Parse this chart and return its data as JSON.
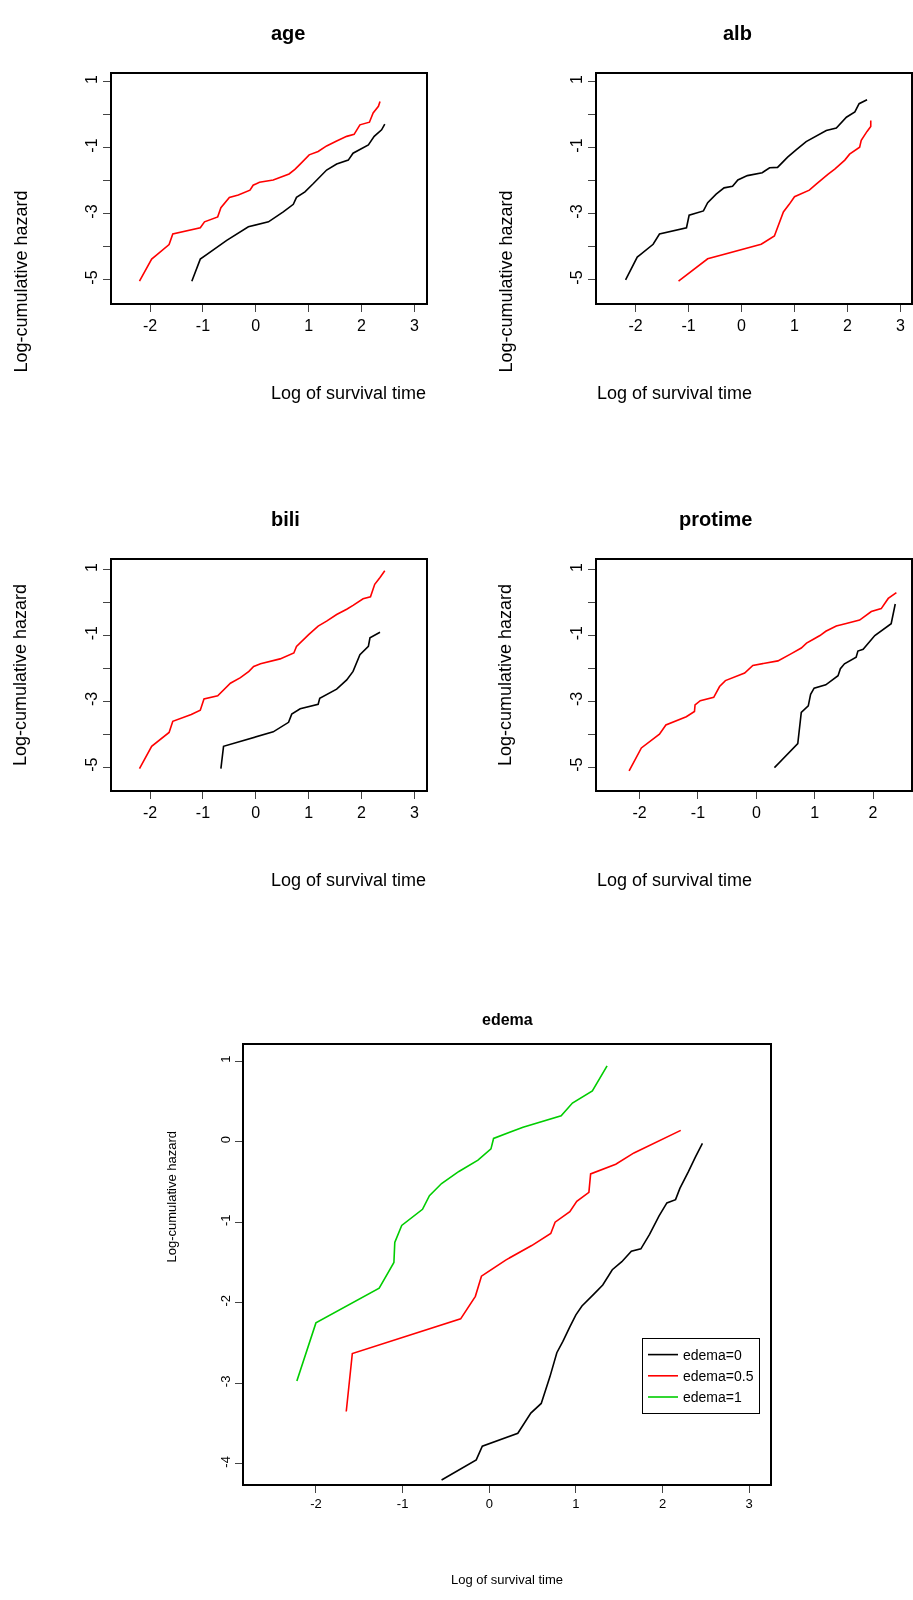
{
  "chart_data": [
    {
      "type": "line",
      "title": "age",
      "xlabel": "Log of survival time",
      "ylabel": "Log-cumulative hazard",
      "xlim": [
        -2.72,
        3.22
      ],
      "ylim": [
        -5.7,
        1.24
      ],
      "xticks": [
        -2,
        -1,
        0,
        1,
        2,
        3
      ],
      "yticks": [
        1,
        {
          "value": 0,
          "label": null
        },
        -1,
        {
          "value": -2,
          "label": null
        },
        -3,
        {
          "value": -4,
          "label": null
        },
        -5
      ],
      "series": [
        {
          "color": "#ff0000",
          "x": [
            -2.2,
            -1.97,
            -1.64,
            -1.57,
            -1.05,
            -0.97,
            -0.72,
            -0.66,
            -0.5,
            -0.33,
            -0.11,
            -0.05,
            0.07,
            0.33,
            0.63,
            0.74,
            0.84,
            1.01,
            1.18,
            1.34,
            1.53,
            1.72,
            1.86,
            1.97,
            2.15,
            2.22,
            2.32,
            2.35
          ],
          "values": [
            -5.04,
            -4.37,
            -3.93,
            -3.61,
            -3.42,
            -3.24,
            -3.09,
            -2.81,
            -2.5,
            -2.43,
            -2.28,
            -2.13,
            -2.04,
            -1.97,
            -1.79,
            -1.65,
            -1.49,
            -1.21,
            -1.11,
            -0.94,
            -0.79,
            -0.65,
            -0.59,
            -0.3,
            -0.22,
            0.06,
            0.26,
            0.41
          ]
        },
        {
          "color": "#000000",
          "x": [
            -1.21,
            -1.05,
            -0.55,
            -0.14,
            0.24,
            0.52,
            0.71,
            0.77,
            0.93,
            1.09,
            1.34,
            1.53,
            1.75,
            1.84,
            2.13,
            2.24,
            2.38,
            2.44
          ],
          "values": [
            -5.04,
            -4.37,
            -3.8,
            -3.39,
            -3.24,
            -2.94,
            -2.71,
            -2.5,
            -2.33,
            -2.08,
            -1.67,
            -1.49,
            -1.37,
            -1.16,
            -0.91,
            -0.65,
            -0.45,
            -0.28
          ]
        }
      ]
    },
    {
      "type": "line",
      "title": "alb",
      "xlabel": "Log of survival time",
      "ylabel": "Log-cumulative hazard",
      "xlim": [
        -2.73,
        3.2
      ],
      "ylim": [
        -5.7,
        1.24
      ],
      "xticks": [
        -2,
        -1,
        0,
        1,
        2,
        3
      ],
      "yticks": [
        1,
        {
          "value": 0,
          "label": null
        },
        -1,
        {
          "value": -2,
          "label": null
        },
        -3,
        {
          "value": -4,
          "label": null
        },
        -5
      ],
      "series": [
        {
          "color": "#000000",
          "x": [
            -2.19,
            -1.97,
            -1.67,
            -1.55,
            -1.04,
            -0.99,
            -0.72,
            -0.64,
            -0.48,
            -0.33,
            -0.17,
            -0.07,
            0.11,
            0.39,
            0.53,
            0.68,
            0.87,
            1.03,
            1.22,
            1.6,
            1.79,
            1.98,
            2.14,
            2.22,
            2.37
          ],
          "values": [
            -5.0,
            -4.31,
            -3.92,
            -3.61,
            -3.42,
            -3.04,
            -2.91,
            -2.66,
            -2.4,
            -2.21,
            -2.16,
            -1.97,
            -1.84,
            -1.75,
            -1.6,
            -1.59,
            -1.28,
            -1.06,
            -0.81,
            -0.47,
            -0.4,
            -0.07,
            0.09,
            0.34,
            0.46
          ]
        },
        {
          "color": "#ff0000",
          "x": [
            -1.19,
            -0.64,
            0.37,
            0.62,
            0.79,
            0.9,
            1.0,
            1.28,
            1.41,
            1.63,
            1.76,
            1.95,
            2.04,
            2.23,
            2.26,
            2.37,
            2.44,
            2.44
          ],
          "values": [
            -5.04,
            -4.36,
            -3.92,
            -3.67,
            -2.94,
            -2.71,
            -2.48,
            -2.28,
            -2.1,
            -1.8,
            -1.64,
            -1.37,
            -1.19,
            -0.98,
            -0.77,
            -0.5,
            -0.35,
            -0.17
          ]
        }
      ]
    },
    {
      "type": "line",
      "title": "bili",
      "xlabel": "Log of survival time",
      "ylabel": "Log-cumulative hazard",
      "xlim": [
        -2.72,
        3.22
      ],
      "ylim": [
        -5.7,
        1.3
      ],
      "xticks": [
        -2,
        -1,
        0,
        1,
        2,
        3
      ],
      "yticks": [
        1,
        {
          "value": 0,
          "label": null
        },
        -1,
        {
          "value": -2,
          "label": null
        },
        -3,
        {
          "value": -4,
          "label": null
        },
        -5
      ],
      "series": [
        {
          "color": "#ff0000",
          "x": [
            -2.2,
            -1.97,
            -1.64,
            -1.57,
            -1.22,
            -1.05,
            -0.98,
            -0.72,
            -0.48,
            -0.29,
            -0.13,
            -0.04,
            0.09,
            0.46,
            0.72,
            0.77,
            1.0,
            1.18,
            1.34,
            1.53,
            1.72,
            1.84,
            2.03,
            2.17,
            2.25,
            2.35,
            2.44
          ],
          "values": [
            -5.05,
            -4.37,
            -3.95,
            -3.61,
            -3.4,
            -3.27,
            -2.93,
            -2.83,
            -2.45,
            -2.28,
            -2.09,
            -1.94,
            -1.86,
            -1.71,
            -1.53,
            -1.33,
            -0.97,
            -0.71,
            -0.56,
            -0.36,
            -0.2,
            -0.08,
            0.12,
            0.18,
            0.56,
            0.77,
            0.97
          ]
        },
        {
          "color": "#000000",
          "x": [
            -0.66,
            -0.61,
            0.33,
            0.62,
            0.68,
            0.84,
            1.18,
            1.21,
            1.53,
            1.72,
            1.84,
            1.97,
            2.13,
            2.16,
            2.35
          ],
          "values": [
            -5.05,
            -4.37,
            -3.93,
            -3.64,
            -3.39,
            -3.23,
            -3.09,
            -2.91,
            -2.63,
            -2.35,
            -2.09,
            -1.58,
            -1.33,
            -1.07,
            -0.9
          ]
        }
      ]
    },
    {
      "type": "line",
      "title": "protime",
      "xlabel": "Log of survival time",
      "ylabel": "Log-cumulative hazard",
      "xlim": [
        -2.73,
        2.65
      ],
      "ylim": [
        -5.7,
        1.3
      ],
      "xticks": [
        -2,
        -1,
        0,
        1,
        2
      ],
      "yticks": [
        1,
        {
          "value": 0,
          "label": null
        },
        -1,
        {
          "value": -2,
          "label": null
        },
        -3,
        {
          "value": -4,
          "label": null
        },
        -5
      ],
      "series": [
        {
          "color": "#ff0000",
          "x": [
            -2.18,
            -1.97,
            -1.66,
            -1.55,
            -1.2,
            -1.06,
            -1.05,
            -0.96,
            -0.73,
            -0.63,
            -0.53,
            -0.2,
            -0.06,
            0.37,
            0.6,
            0.77,
            0.86,
            0.97,
            1.09,
            1.19,
            1.37,
            1.54,
            1.77,
            1.97,
            2.14,
            2.26,
            2.4
          ],
          "values": [
            -5.12,
            -4.42,
            -4.0,
            -3.72,
            -3.47,
            -3.31,
            -3.11,
            -2.98,
            -2.88,
            -2.55,
            -2.37,
            -2.14,
            -1.91,
            -1.77,
            -1.55,
            -1.38,
            -1.23,
            -1.12,
            -1.0,
            -0.87,
            -0.71,
            -0.63,
            -0.53,
            -0.27,
            -0.18,
            0.13,
            0.31
          ]
        },
        {
          "color": "#000000",
          "x": [
            0.31,
            0.71,
            0.77,
            0.89,
            0.93,
            0.99,
            1.19,
            1.4,
            1.44,
            1.51,
            1.71,
            1.74,
            1.83,
            2.03,
            2.31,
            2.38
          ],
          "values": [
            -5.02,
            -4.29,
            -3.34,
            -3.14,
            -2.79,
            -2.6,
            -2.5,
            -2.22,
            -2.01,
            -1.86,
            -1.66,
            -1.47,
            -1.42,
            -1.0,
            -0.64,
            -0.04
          ]
        }
      ]
    },
    {
      "type": "line",
      "title": "edema",
      "xlabel": "Log of survival time",
      "ylabel": "Log-cumulative hazard",
      "xlim": [
        -2.83,
        3.24
      ],
      "ylim": [
        -4.25,
        1.2
      ],
      "xticks": [
        -2,
        -1,
        0,
        1,
        2,
        3
      ],
      "yticks": [
        1,
        0,
        -1,
        -2,
        -3,
        -4
      ],
      "legend": "bottom right",
      "series": [
        {
          "name": "edema=0",
          "color": "#000000",
          "x": [
            -0.55,
            -0.15,
            -0.08,
            0.33,
            0.48,
            0.6,
            0.7,
            0.78,
            0.85,
            0.93,
            1.0,
            1.07,
            1.21,
            1.31,
            1.42,
            1.53,
            1.64,
            1.75,
            1.85,
            1.96,
            2.05,
            2.15,
            2.2,
            2.3,
            2.38,
            2.46
          ],
          "values": [
            -4.2,
            -3.95,
            -3.78,
            -3.62,
            -3.37,
            -3.25,
            -2.92,
            -2.62,
            -2.48,
            -2.3,
            -2.15,
            -2.04,
            -1.89,
            -1.78,
            -1.59,
            -1.49,
            -1.36,
            -1.33,
            -1.15,
            -0.92,
            -0.76,
            -0.72,
            -0.58,
            -0.37,
            -0.19,
            -0.02
          ]
        },
        {
          "name": "edema=0.5",
          "color": "#ff0000",
          "x": [
            -1.65,
            -1.58,
            -0.33,
            -0.16,
            -0.09,
            0.19,
            0.49,
            0.71,
            0.76,
            0.93,
            1.01,
            1.15,
            1.17,
            1.46,
            1.67,
            2.21
          ],
          "values": [
            -3.35,
            -2.63,
            -2.2,
            -1.92,
            -1.67,
            -1.47,
            -1.29,
            -1.14,
            -1.0,
            -0.87,
            -0.74,
            -0.63,
            -0.4,
            -0.28,
            -0.14,
            0.14
          ]
        },
        {
          "name": "edema=1",
          "color": "#00cd00",
          "x": [
            -2.22,
            -2.0,
            -1.27,
            -1.1,
            -1.09,
            -1.01,
            -0.77,
            -0.69,
            -0.55,
            -0.35,
            -0.13,
            0.02,
            0.05,
            0.39,
            0.83,
            0.96,
            1.19,
            1.36
          ],
          "values": [
            -2.97,
            -2.25,
            -1.82,
            -1.5,
            -1.25,
            -1.04,
            -0.84,
            -0.67,
            -0.52,
            -0.37,
            -0.23,
            -0.09,
            0.04,
            0.18,
            0.32,
            0.48,
            0.63,
            0.94
          ]
        }
      ]
    }
  ]
}
